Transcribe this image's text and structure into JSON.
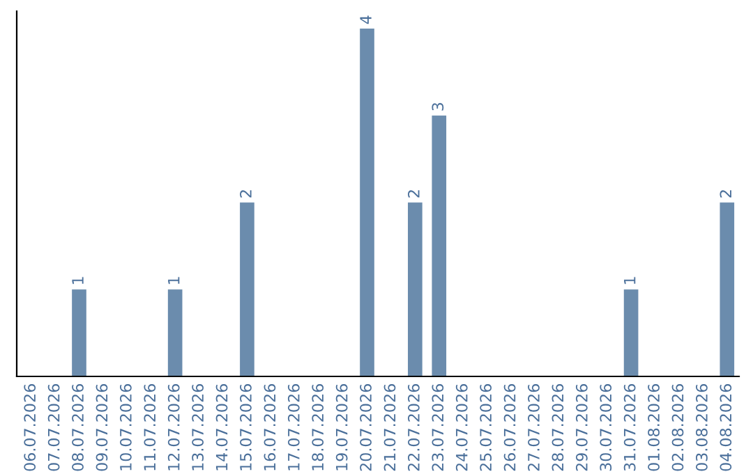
{
  "chart_data": {
    "type": "bar",
    "categories": [
      "06.07.2026",
      "07.07.2026",
      "08.07.2026",
      "09.07.2026",
      "10.07.2026",
      "11.07.2026",
      "12.07.2026",
      "13.07.2026",
      "14.07.2026",
      "15.07.2026",
      "16.07.2026",
      "17.07.2026",
      "18.07.2026",
      "19.07.2026",
      "20.07.2026",
      "21.07.2026",
      "22.07.2026",
      "23.07.2026",
      "24.07.2026",
      "25.07.2026",
      "26.07.2026",
      "27.07.2026",
      "28.07.2026",
      "29.07.2026",
      "30.07.2026",
      "31.07.2026",
      "01.08.2026",
      "02.08.2026",
      "03.08.2026",
      "04.08.2026"
    ],
    "values": [
      0,
      0,
      1,
      0,
      0,
      0,
      1,
      0,
      0,
      2,
      0,
      0,
      0,
      0,
      4,
      0,
      2,
      3,
      0,
      0,
      0,
      0,
      0,
      0,
      0,
      1,
      0,
      0,
      0,
      2
    ],
    "value_labels": [
      null,
      null,
      "1",
      null,
      null,
      null,
      "1",
      null,
      null,
      "2",
      null,
      null,
      null,
      null,
      "4",
      null,
      "2",
      "3",
      null,
      null,
      null,
      null,
      null,
      null,
      null,
      "1",
      null,
      null,
      null,
      "2"
    ],
    "color": "#6b8cad",
    "tick_labels": "x",
    "grid": false,
    "legend": false
  }
}
